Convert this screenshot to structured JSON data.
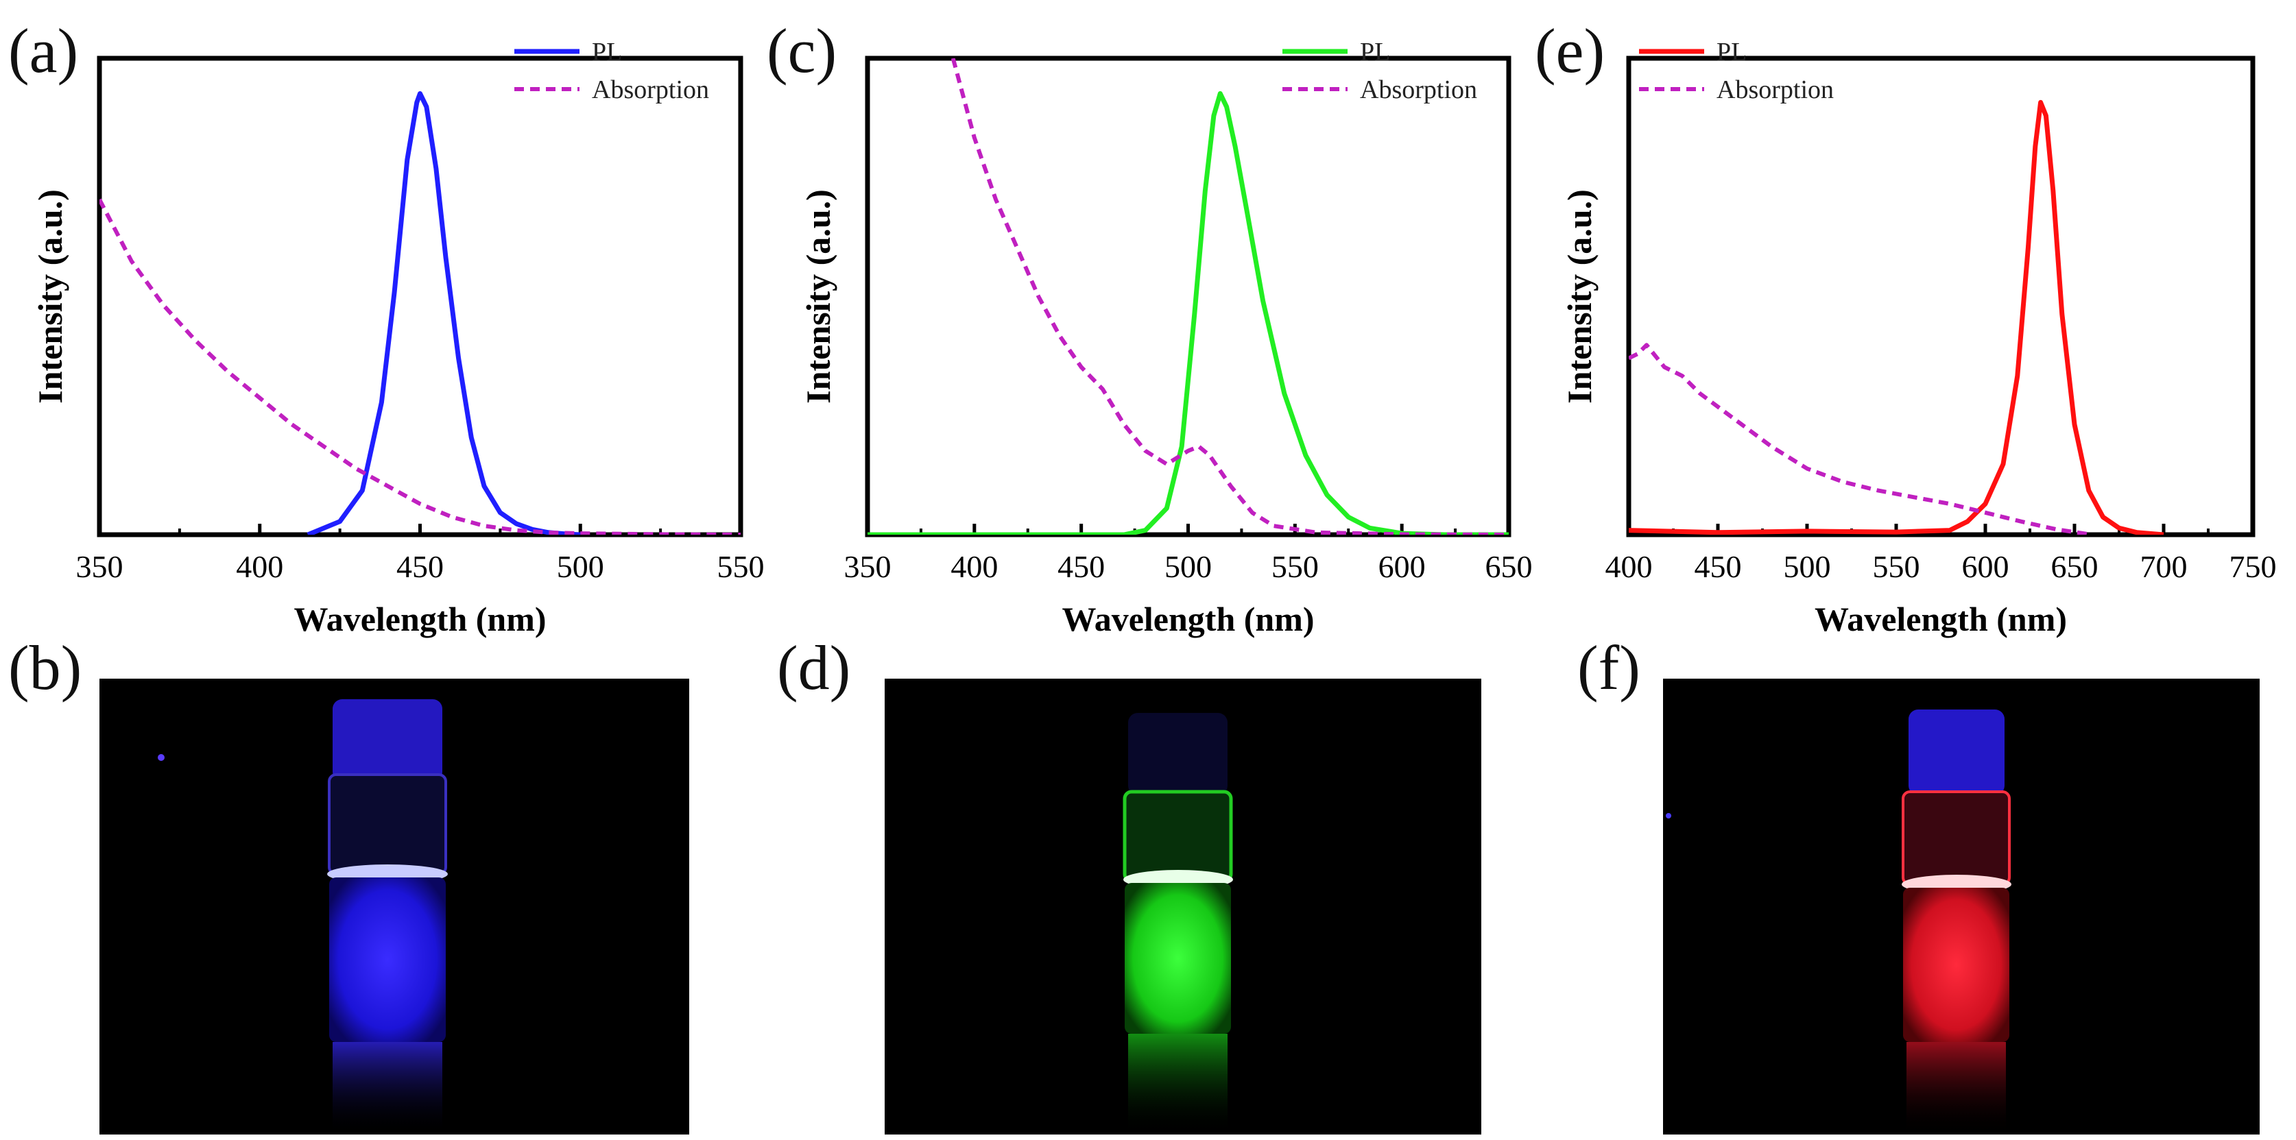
{
  "figure": {
    "panel_labels": [
      "(a)",
      "(c)",
      "(e)",
      "(b)",
      "(d)",
      "(f)"
    ]
  },
  "chart_data": [
    {
      "type": "line",
      "panel": "(a)",
      "xlabel": "Wavelength (nm)",
      "ylabel": "Intensity (a.u.)",
      "xlim": [
        350,
        550
      ],
      "ylim": [
        0,
        1.08
      ],
      "xticks": [
        350,
        400,
        450,
        500,
        550
      ],
      "grid": false,
      "legend_position": "top-right",
      "series": [
        {
          "name": "PL",
          "style": "solid",
          "color": "#1f1fff",
          "x": [
            415,
            425,
            432,
            438,
            442,
            446,
            449,
            450,
            452,
            455,
            458,
            462,
            466,
            470,
            475,
            480,
            485,
            490,
            495,
            500
          ],
          "y": [
            0.0,
            0.03,
            0.1,
            0.3,
            0.55,
            0.85,
            0.98,
            1.0,
            0.97,
            0.83,
            0.63,
            0.4,
            0.22,
            0.11,
            0.05,
            0.025,
            0.012,
            0.005,
            0.002,
            0.0
          ]
        },
        {
          "name": "Absorption",
          "style": "dashed",
          "color": "#c020c0",
          "x": [
            350,
            360,
            370,
            380,
            390,
            400,
            410,
            420,
            430,
            440,
            450,
            460,
            470,
            480,
            490,
            500,
            525,
            550
          ],
          "y": [
            0.76,
            0.62,
            0.52,
            0.44,
            0.37,
            0.31,
            0.25,
            0.2,
            0.15,
            0.11,
            0.07,
            0.04,
            0.02,
            0.01,
            0.005,
            0.003,
            0.001,
            0.0
          ]
        }
      ]
    },
    {
      "type": "line",
      "panel": "(c)",
      "xlabel": "Wavelength (nm)",
      "ylabel": "Intensity (a.u.)",
      "xlim": [
        350,
        650
      ],
      "ylim": [
        0,
        1.08
      ],
      "xticks": [
        350,
        400,
        450,
        500,
        550,
        600,
        650
      ],
      "grid": false,
      "legend_position": "top-right",
      "series": [
        {
          "name": "PL",
          "style": "solid",
          "color": "#22ee22",
          "x": [
            350,
            450,
            470,
            480,
            490,
            497,
            503,
            508,
            512,
            515,
            518,
            522,
            528,
            535,
            545,
            555,
            565,
            575,
            585,
            600,
            620,
            650
          ],
          "y": [
            0.0,
            0.0,
            0.0,
            0.01,
            0.06,
            0.2,
            0.5,
            0.78,
            0.95,
            1.0,
            0.97,
            0.88,
            0.72,
            0.53,
            0.32,
            0.18,
            0.09,
            0.04,
            0.015,
            0.003,
            0.0,
            0.0
          ]
        },
        {
          "name": "Absorption",
          "style": "dashed",
          "color": "#c020c0",
          "x": [
            390,
            400,
            410,
            420,
            430,
            440,
            450,
            460,
            470,
            480,
            490,
            500,
            505,
            510,
            520,
            530,
            540,
            560,
            600,
            650
          ],
          "y": [
            1.08,
            0.9,
            0.76,
            0.65,
            0.54,
            0.45,
            0.38,
            0.33,
            0.25,
            0.19,
            0.16,
            0.19,
            0.2,
            0.18,
            0.11,
            0.05,
            0.02,
            0.005,
            0.001,
            0.0
          ]
        }
      ]
    },
    {
      "type": "line",
      "panel": "(e)",
      "xlabel": "Wavelength (nm)",
      "ylabel": "Intensity (a.u.)",
      "xlim": [
        400,
        750
      ],
      "ylim": [
        0,
        1.08
      ],
      "xticks": [
        400,
        450,
        500,
        550,
        600,
        650,
        700,
        750
      ],
      "grid": false,
      "legend_position": "top-left",
      "series": [
        {
          "name": "PL",
          "style": "solid",
          "color": "#ff1010",
          "x": [
            400,
            450,
            500,
            550,
            580,
            590,
            600,
            610,
            618,
            624,
            628,
            631,
            634,
            638,
            643,
            650,
            658,
            666,
            675,
            685,
            700
          ],
          "y": [
            0.01,
            0.005,
            0.008,
            0.006,
            0.01,
            0.03,
            0.07,
            0.16,
            0.36,
            0.65,
            0.88,
            0.98,
            0.95,
            0.78,
            0.5,
            0.25,
            0.1,
            0.04,
            0.015,
            0.005,
            0.0
          ]
        },
        {
          "name": "Absorption",
          "style": "dashed",
          "color": "#c020c0",
          "x": [
            400,
            405,
            410,
            420,
            430,
            440,
            460,
            480,
            500,
            520,
            540,
            560,
            580,
            600,
            620,
            640,
            660
          ],
          "y": [
            0.4,
            0.41,
            0.43,
            0.38,
            0.36,
            0.32,
            0.26,
            0.2,
            0.15,
            0.12,
            0.1,
            0.085,
            0.07,
            0.05,
            0.03,
            0.012,
            0.0
          ]
        }
      ]
    }
  ]
}
